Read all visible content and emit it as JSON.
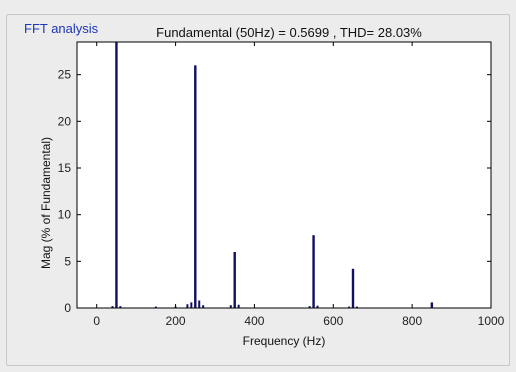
{
  "panel": {
    "title": "FFT analysis"
  },
  "colors": {
    "bar": "#101060",
    "panel_title": "#1d36b8",
    "plot_bg": "#ffffff",
    "window_bg": "#ececec"
  },
  "chart_data": {
    "type": "bar",
    "title": "Fundamental (50Hz) = 0.5699 , THD= 28.03%",
    "xlabel": "Frequency (Hz)",
    "ylabel": "Mag (% of Fundamental)",
    "xlim": [
      -50,
      1000
    ],
    "ylim": [
      0,
      28.5
    ],
    "xticks": [
      0,
      200,
      400,
      600,
      800,
      1000
    ],
    "yticks": [
      0,
      5,
      10,
      15,
      20,
      25
    ],
    "grid": false,
    "spikes": [
      {
        "x": 50,
        "y": 28.5
      },
      {
        "x": 250,
        "y": 26.0
      },
      {
        "x": 350,
        "y": 6.0
      },
      {
        "x": 550,
        "y": 7.8
      },
      {
        "x": 650,
        "y": 4.2
      },
      {
        "x": 850,
        "y": 0.6
      }
    ],
    "minor_components": [
      {
        "x": 40,
        "y": 0.2
      },
      {
        "x": 60,
        "y": 0.2
      },
      {
        "x": 150,
        "y": 0.15
      },
      {
        "x": 200,
        "y": 0.15
      },
      {
        "x": 230,
        "y": 0.4
      },
      {
        "x": 240,
        "y": 0.6
      },
      {
        "x": 260,
        "y": 0.8
      },
      {
        "x": 270,
        "y": 0.3
      },
      {
        "x": 340,
        "y": 0.3
      },
      {
        "x": 360,
        "y": 0.35
      },
      {
        "x": 540,
        "y": 0.2
      },
      {
        "x": 560,
        "y": 0.25
      },
      {
        "x": 640,
        "y": 0.15
      },
      {
        "x": 660,
        "y": 0.15
      }
    ]
  }
}
